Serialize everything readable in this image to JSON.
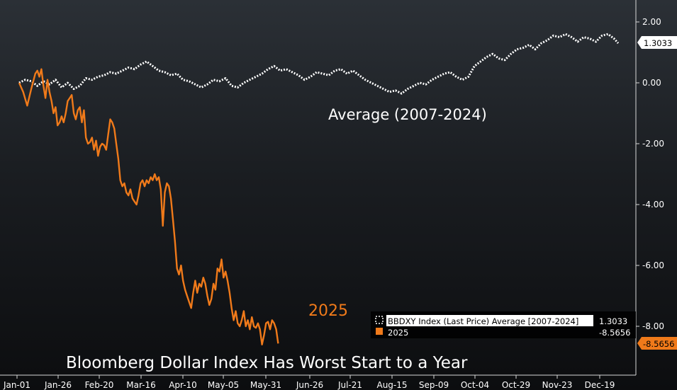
{
  "chart_data": {
    "type": "line",
    "title": "Bloomberg Dollar Index Has Worst Start to a Year",
    "x_ticks": [
      "Jan-01",
      "Jan-26",
      "Feb-20",
      "Mar-16",
      "Apr-10",
      "May-05",
      "May-31",
      "Jun-26",
      "Jul-21",
      "Aug-15",
      "Sep-09",
      "Oct-04",
      "Oct-29",
      "Nov-23",
      "Dec-19"
    ],
    "y_ticks": [
      "2.00",
      "0.00",
      "-2.00",
      "-4.00",
      "-6.00",
      "-8.00"
    ],
    "ylim": [
      -9.5,
      2.7
    ],
    "series": [
      {
        "name": "BBDXY Index (Last Price) Average [2007-2024]",
        "annotation": "Average (2007-2024)",
        "last_value": "1.3033",
        "color": "#ffffff",
        "style": "dashed",
        "points": [
          [
            0,
            0.0
          ],
          [
            3,
            0.1
          ],
          [
            6,
            0.05
          ],
          [
            9,
            -0.1
          ],
          [
            12,
            0.05
          ],
          [
            15,
            -0.05
          ],
          [
            18,
            0.1
          ],
          [
            21,
            -0.15
          ],
          [
            24,
            0.0
          ],
          [
            27,
            -0.2
          ],
          [
            30,
            -0.1
          ],
          [
            33,
            0.15
          ],
          [
            36,
            0.1
          ],
          [
            39,
            0.2
          ],
          [
            42,
            0.25
          ],
          [
            45,
            0.35
          ],
          [
            48,
            0.3
          ],
          [
            51,
            0.4
          ],
          [
            54,
            0.5
          ],
          [
            57,
            0.45
          ],
          [
            60,
            0.6
          ],
          [
            63,
            0.7
          ],
          [
            66,
            0.55
          ],
          [
            69,
            0.4
          ],
          [
            72,
            0.35
          ],
          [
            75,
            0.25
          ],
          [
            78,
            0.3
          ],
          [
            81,
            0.1
          ],
          [
            84,
            0.05
          ],
          [
            87,
            -0.05
          ],
          [
            90,
            -0.15
          ],
          [
            93,
            -0.05
          ],
          [
            96,
            0.1
          ],
          [
            99,
            0.05
          ],
          [
            102,
            0.15
          ],
          [
            105,
            -0.1
          ],
          [
            108,
            -0.15
          ],
          [
            111,
            0.0
          ],
          [
            114,
            0.1
          ],
          [
            117,
            0.2
          ],
          [
            120,
            0.3
          ],
          [
            123,
            0.45
          ],
          [
            126,
            0.55
          ],
          [
            129,
            0.4
          ],
          [
            132,
            0.45
          ],
          [
            135,
            0.35
          ],
          [
            138,
            0.25
          ],
          [
            141,
            0.1
          ],
          [
            144,
            0.2
          ],
          [
            147,
            0.35
          ],
          [
            150,
            0.3
          ],
          [
            153,
            0.25
          ],
          [
            156,
            0.4
          ],
          [
            159,
            0.45
          ],
          [
            162,
            0.3
          ],
          [
            165,
            0.4
          ],
          [
            168,
            0.25
          ],
          [
            171,
            0.1
          ],
          [
            174,
            0.0
          ],
          [
            177,
            -0.1
          ],
          [
            180,
            -0.2
          ],
          [
            183,
            -0.3
          ],
          [
            186,
            -0.25
          ],
          [
            189,
            -0.35
          ],
          [
            192,
            -0.2
          ],
          [
            195,
            -0.1
          ],
          [
            198,
            0.0
          ],
          [
            201,
            -0.05
          ],
          [
            204,
            0.1
          ],
          [
            207,
            0.2
          ],
          [
            210,
            0.3
          ],
          [
            213,
            0.35
          ],
          [
            216,
            0.2
          ],
          [
            219,
            0.1
          ],
          [
            222,
            0.2
          ],
          [
            225,
            0.55
          ],
          [
            228,
            0.7
          ],
          [
            231,
            0.85
          ],
          [
            234,
            0.95
          ],
          [
            237,
            0.8
          ],
          [
            240,
            0.75
          ],
          [
            243,
            0.95
          ],
          [
            246,
            1.1
          ],
          [
            249,
            1.15
          ],
          [
            252,
            1.25
          ],
          [
            255,
            1.1
          ],
          [
            258,
            1.3
          ],
          [
            261,
            1.4
          ],
          [
            264,
            1.55
          ],
          [
            267,
            1.5
          ],
          [
            270,
            1.6
          ],
          [
            273,
            1.5
          ],
          [
            276,
            1.35
          ],
          [
            279,
            1.5
          ],
          [
            282,
            1.45
          ],
          [
            285,
            1.35
          ],
          [
            288,
            1.55
          ],
          [
            291,
            1.6
          ],
          [
            294,
            1.45
          ],
          [
            296,
            1.3033
          ]
        ]
      },
      {
        "name": "2025",
        "annotation": "2025",
        "last_value": "-8.5656",
        "color": "#f07a1a",
        "style": "solid",
        "points": [
          [
            0,
            0.0
          ],
          [
            2,
            -0.3
          ],
          [
            4,
            -0.75
          ],
          [
            6,
            -0.2
          ],
          [
            8,
            0.3
          ],
          [
            9,
            0.4
          ],
          [
            10,
            0.2
          ],
          [
            11,
            0.45
          ],
          [
            12,
            -0.1
          ],
          [
            13,
            -0.5
          ],
          [
            14,
            0.1
          ],
          [
            15,
            -0.3
          ],
          [
            16,
            -0.6
          ],
          [
            17,
            -1.0
          ],
          [
            18,
            -0.8
          ],
          [
            19,
            -1.4
          ],
          [
            20,
            -1.3
          ],
          [
            21,
            -1.1
          ],
          [
            22,
            -1.3
          ],
          [
            23,
            -1.0
          ],
          [
            24,
            -0.6
          ],
          [
            25,
            -0.5
          ],
          [
            26,
            -0.4
          ],
          [
            27,
            -1.0
          ],
          [
            28,
            -1.2
          ],
          [
            29,
            -0.9
          ],
          [
            30,
            -0.8
          ],
          [
            31,
            -1.3
          ],
          [
            32,
            -0.9
          ],
          [
            33,
            -1.8
          ],
          [
            34,
            -2.0
          ],
          [
            35,
            -1.95
          ],
          [
            36,
            -1.8
          ],
          [
            37,
            -2.2
          ],
          [
            38,
            -1.9
          ],
          [
            39,
            -2.4
          ],
          [
            40,
            -2.1
          ],
          [
            41,
            -2.0
          ],
          [
            42,
            -2.05
          ],
          [
            43,
            -2.2
          ],
          [
            44,
            -1.7
          ],
          [
            45,
            -1.2
          ],
          [
            46,
            -1.3
          ],
          [
            47,
            -1.5
          ],
          [
            48,
            -2.0
          ],
          [
            49,
            -2.5
          ],
          [
            50,
            -3.2
          ],
          [
            51,
            -3.4
          ],
          [
            52,
            -3.3
          ],
          [
            53,
            -3.6
          ],
          [
            54,
            -3.7
          ],
          [
            55,
            -3.5
          ],
          [
            56,
            -3.8
          ],
          [
            57,
            -3.9
          ],
          [
            58,
            -4.0
          ],
          [
            59,
            -3.7
          ],
          [
            60,
            -3.3
          ],
          [
            61,
            -3.2
          ],
          [
            62,
            -3.4
          ],
          [
            63,
            -3.2
          ],
          [
            64,
            -3.3
          ],
          [
            65,
            -3.1
          ],
          [
            66,
            -3.2
          ],
          [
            67,
            -3.0
          ],
          [
            68,
            -3.2
          ],
          [
            69,
            -3.1
          ],
          [
            70,
            -3.5
          ],
          [
            71,
            -4.7
          ],
          [
            72,
            -3.6
          ],
          [
            73,
            -3.3
          ],
          [
            74,
            -3.4
          ],
          [
            75,
            -3.8
          ],
          [
            76,
            -4.5
          ],
          [
            77,
            -5.2
          ],
          [
            78,
            -6.1
          ],
          [
            79,
            -6.3
          ],
          [
            80,
            -6.0
          ],
          [
            81,
            -6.5
          ],
          [
            82,
            -6.8
          ],
          [
            83,
            -7.0
          ],
          [
            84,
            -7.2
          ],
          [
            85,
            -7.4
          ],
          [
            86,
            -6.9
          ],
          [
            87,
            -6.5
          ],
          [
            88,
            -6.9
          ],
          [
            89,
            -6.6
          ],
          [
            90,
            -6.7
          ],
          [
            91,
            -6.4
          ],
          [
            92,
            -6.6
          ],
          [
            93,
            -7.0
          ],
          [
            94,
            -7.3
          ],
          [
            95,
            -7.1
          ],
          [
            96,
            -6.6
          ],
          [
            97,
            -6.8
          ],
          [
            98,
            -6.1
          ],
          [
            99,
            -6.2
          ],
          [
            100,
            -5.8
          ],
          [
            101,
            -6.4
          ],
          [
            102,
            -6.2
          ],
          [
            103,
            -6.5
          ],
          [
            104,
            -6.9
          ],
          [
            105,
            -7.4
          ],
          [
            106,
            -7.8
          ],
          [
            107,
            -7.5
          ],
          [
            108,
            -7.9
          ],
          [
            109,
            -8.0
          ],
          [
            110,
            -7.8
          ],
          [
            111,
            -7.5
          ],
          [
            112,
            -8.0
          ],
          [
            113,
            -7.8
          ],
          [
            114,
            -8.1
          ],
          [
            115,
            -7.7
          ],
          [
            116,
            -8.0
          ],
          [
            117,
            -8.05
          ],
          [
            118,
            -7.9
          ],
          [
            119,
            -8.1
          ],
          [
            120,
            -8.6
          ],
          [
            121,
            -8.3
          ],
          [
            122,
            -7.9
          ],
          [
            123,
            -7.85
          ],
          [
            124,
            -8.1
          ],
          [
            125,
            -7.8
          ],
          [
            126,
            -7.9
          ],
          [
            127,
            -8.1
          ],
          [
            128,
            -8.5656
          ]
        ]
      }
    ]
  }
}
